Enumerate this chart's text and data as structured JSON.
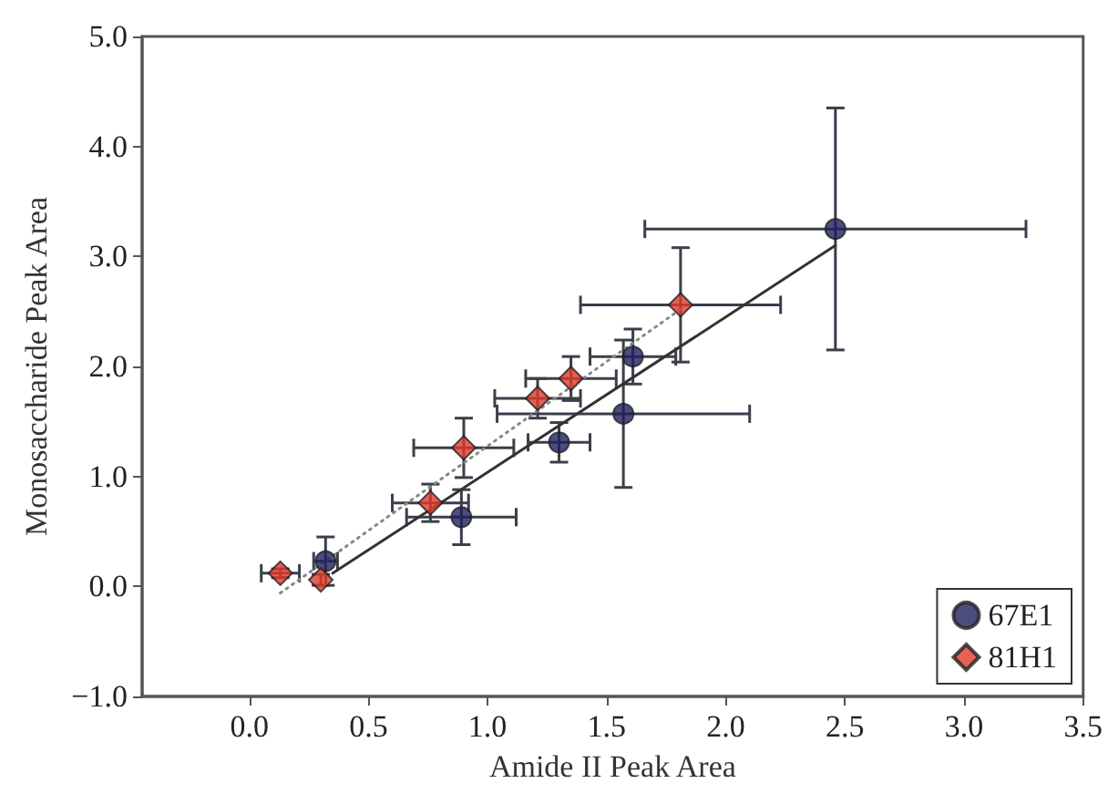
{
  "chart_data": {
    "type": "scatter",
    "xlabel": "Amide II Peak Area",
    "ylabel": "Monosaccharide Peak Area",
    "xlim": [
      -0.45,
      3.5
    ],
    "ylim": [
      -1.0,
      5.0
    ],
    "xticks": [
      {
        "value": 0,
        "label": "0.0"
      },
      {
        "value": 0.5,
        "label": "0.5"
      },
      {
        "value": 1,
        "label": "1.0"
      },
      {
        "value": 1.5,
        "label": "1.5"
      },
      {
        "value": 2,
        "label": "2.0"
      },
      {
        "value": 2.5,
        "label": "2.5"
      },
      {
        "value": 3,
        "label": "3.0"
      },
      {
        "value": 3.5,
        "label": "3.5"
      }
    ],
    "yticks": [
      {
        "value": -1,
        "label": "−1.0"
      },
      {
        "value": 0,
        "label": "0.0"
      },
      {
        "value": 1,
        "label": "1.0"
      },
      {
        "value": 2,
        "label": "2.0"
      },
      {
        "value": 3,
        "label": "3.0"
      },
      {
        "value": 4,
        "label": "4.0"
      },
      {
        "value": 5,
        "label": "5.0"
      }
    ],
    "grid": false,
    "legend": "bottom right",
    "series": [
      {
        "name": "67E1",
        "marker": "circle",
        "color": "#1f1f5e",
        "x": [
          0.32,
          0.89,
          1.3,
          1.57,
          1.61,
          2.46
        ],
        "values": [
          0.23,
          0.63,
          1.31,
          1.57,
          2.09,
          3.25
        ],
        "errors": [
          0.22,
          0.25,
          0.18,
          0.67,
          0.25,
          1.1
        ],
        "xerrors": [
          0.05,
          0.23,
          0.13,
          0.53,
          0.18,
          0.8
        ]
      },
      {
        "name": "81H1",
        "marker": "diamond",
        "color": "#e03a2a",
        "x": [
          0.13,
          0.3,
          0.76,
          0.9,
          1.21,
          1.35,
          1.81
        ],
        "values": [
          0.12,
          0.06,
          0.76,
          1.26,
          1.71,
          1.89,
          2.56
        ],
        "errors": [
          0.04,
          0.05,
          0.17,
          0.27,
          0.18,
          0.2,
          0.52
        ],
        "xerrors": [
          0.08,
          null,
          0.16,
          0.21,
          0.18,
          0.19,
          0.42
        ]
      },
      {
        "type": "line",
        "color": "#333333",
        "line_style": "solid",
        "marker": "none",
        "x": [
          0.35,
          2.46
        ],
        "values": [
          0.12,
          3.1
        ]
      },
      {
        "type": "line",
        "color": "#888888",
        "line_style": "dotted",
        "marker": "none",
        "x": [
          0.13,
          1.81
        ],
        "values": [
          -0.06,
          2.52
        ]
      }
    ]
  }
}
